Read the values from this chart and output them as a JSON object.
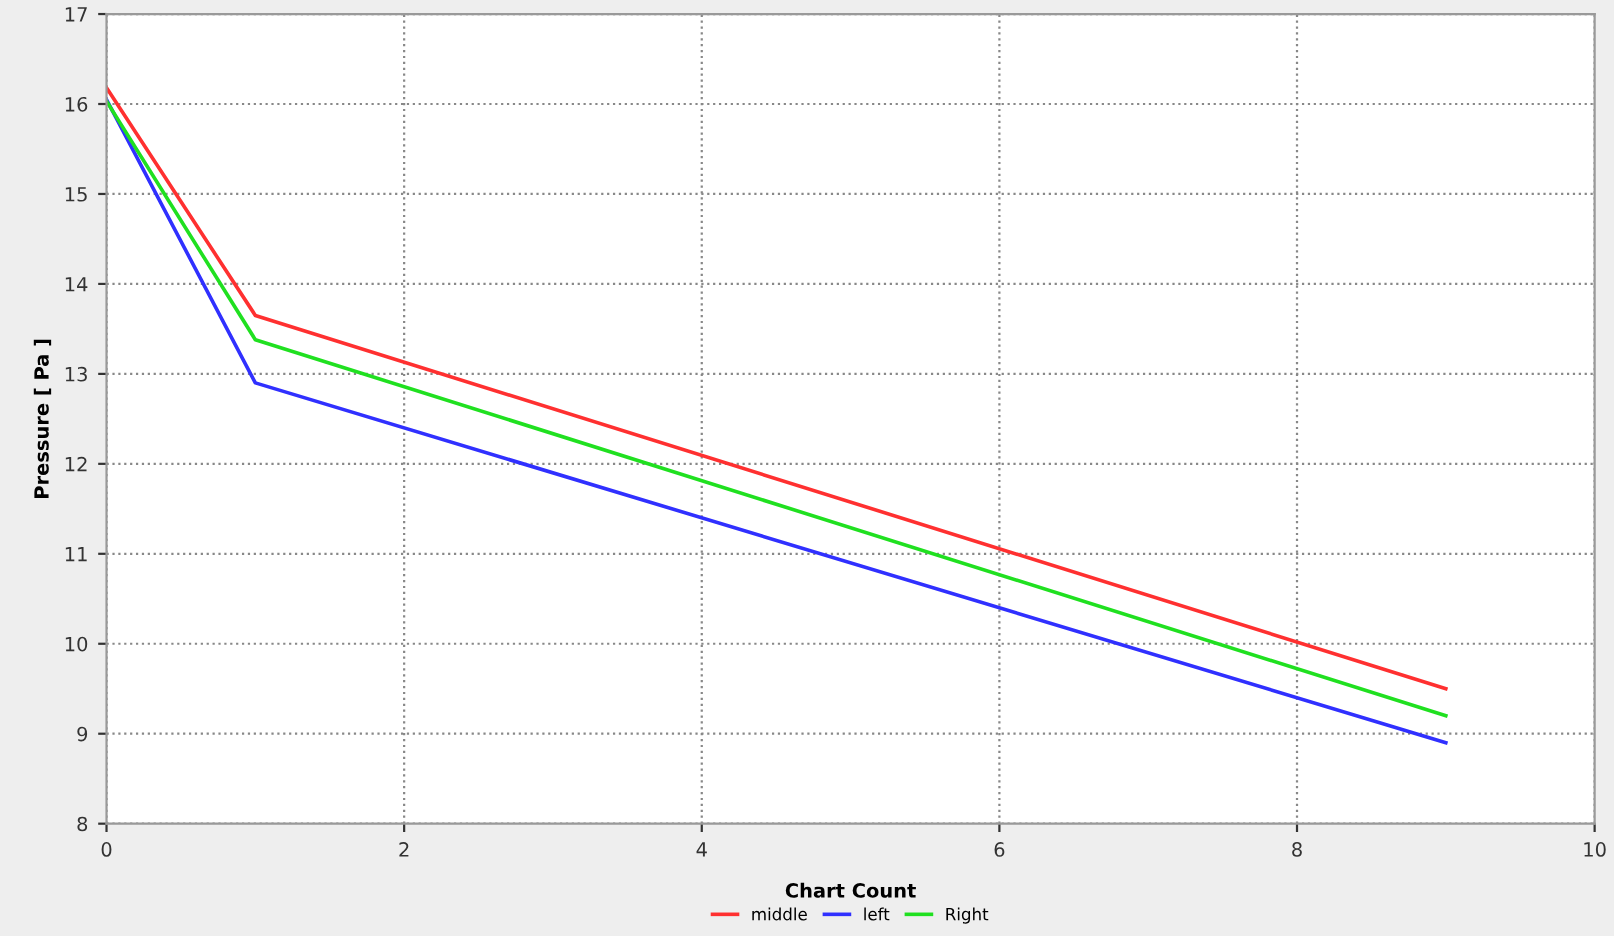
{
  "chart_data": {
    "type": "line",
    "xlabel": "Chart Count",
    "ylabel": "Pressure [ Pa ]",
    "x": [
      0,
      1,
      9
    ],
    "series": [
      {
        "name": "middle",
        "color": "#ff3030",
        "values": [
          16.18,
          13.65,
          9.5
        ]
      },
      {
        "name": "left",
        "color": "#3030ff",
        "values": [
          16.05,
          12.9,
          8.9
        ]
      },
      {
        "name": "Right",
        "color": "#20e020",
        "values": [
          16.03,
          13.38,
          9.2
        ]
      }
    ],
    "xlim": [
      0,
      10
    ],
    "xticks": [
      0,
      2,
      4,
      6,
      8,
      10
    ],
    "ylim": [
      8,
      17
    ],
    "yticks": [
      8,
      9,
      10,
      11,
      12,
      13,
      14,
      15,
      16,
      17
    ],
    "grid": true,
    "legend": "bottom",
    "marker": "none",
    "line_style": "solid"
  }
}
